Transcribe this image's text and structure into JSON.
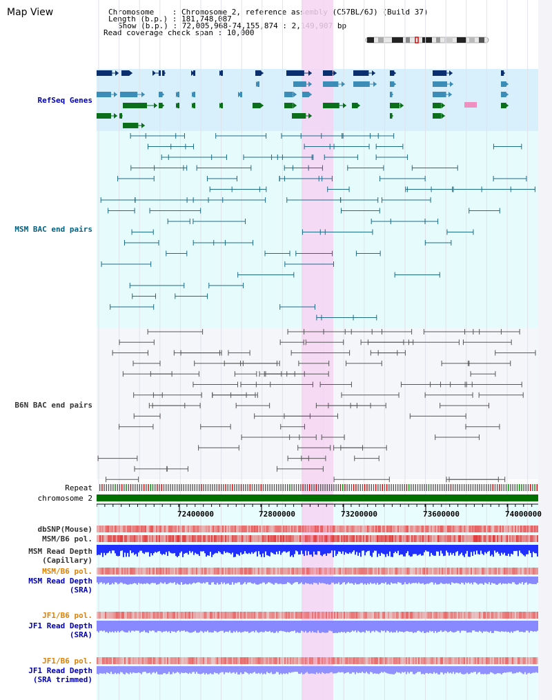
{
  "header": {
    "title": "Map View",
    "lines": [
      "Chromosome    : Chromosome 2, reference assembly (C57BL/6J) (Build 37)",
      "Length (b.p.) : 181,748,087",
      "Show (b.p.) : 72,005,968-74,155,874 : 2,149,907 bp",
      "Read coverage check span : 10,000"
    ]
  },
  "tracks": {
    "refseq": "RefSeq Genes",
    "msm_bac": "MSM BAC end pairs",
    "b6n_bac": "B6N BAC end pairs",
    "repeat": "Repeat",
    "chromosome": "chromosome 2",
    "dbsnp": "dbSNP(Mouse)",
    "msm_b6_pol": "MSM/B6 pol.",
    "msm_read_depth_cap": "MSM Read Depth\n(Capillary)",
    "msm_b6_pol_sra": "MSM/B6 pol.",
    "msm_read_depth_sra": "MSM Read Depth\n(SRA)",
    "jf1_b6_pol": "JF1/B6 pol.",
    "jf1_read_depth_sra": "JF1 Read Depth\n(SRA)",
    "jf1_b6_pol_trim": "JF1/B6 pol.",
    "jf1_read_depth_trim": "JF1 Read Depth\n(SRA trimmed)"
  },
  "axis": {
    "ticks": [
      "72400000",
      "72800000",
      "73200000",
      "73600000",
      "74000000"
    ]
  },
  "colors": {
    "highlight": "#f6d4f2",
    "refseq_bg": "#d8f0fb",
    "msm_bg": "#e6fbfb",
    "b6n_bg": "#f4f6f9",
    "chromosome_bar": "#007000",
    "read_depth_blue": "#2030ff",
    "sra_blue": "#8888ff"
  }
}
